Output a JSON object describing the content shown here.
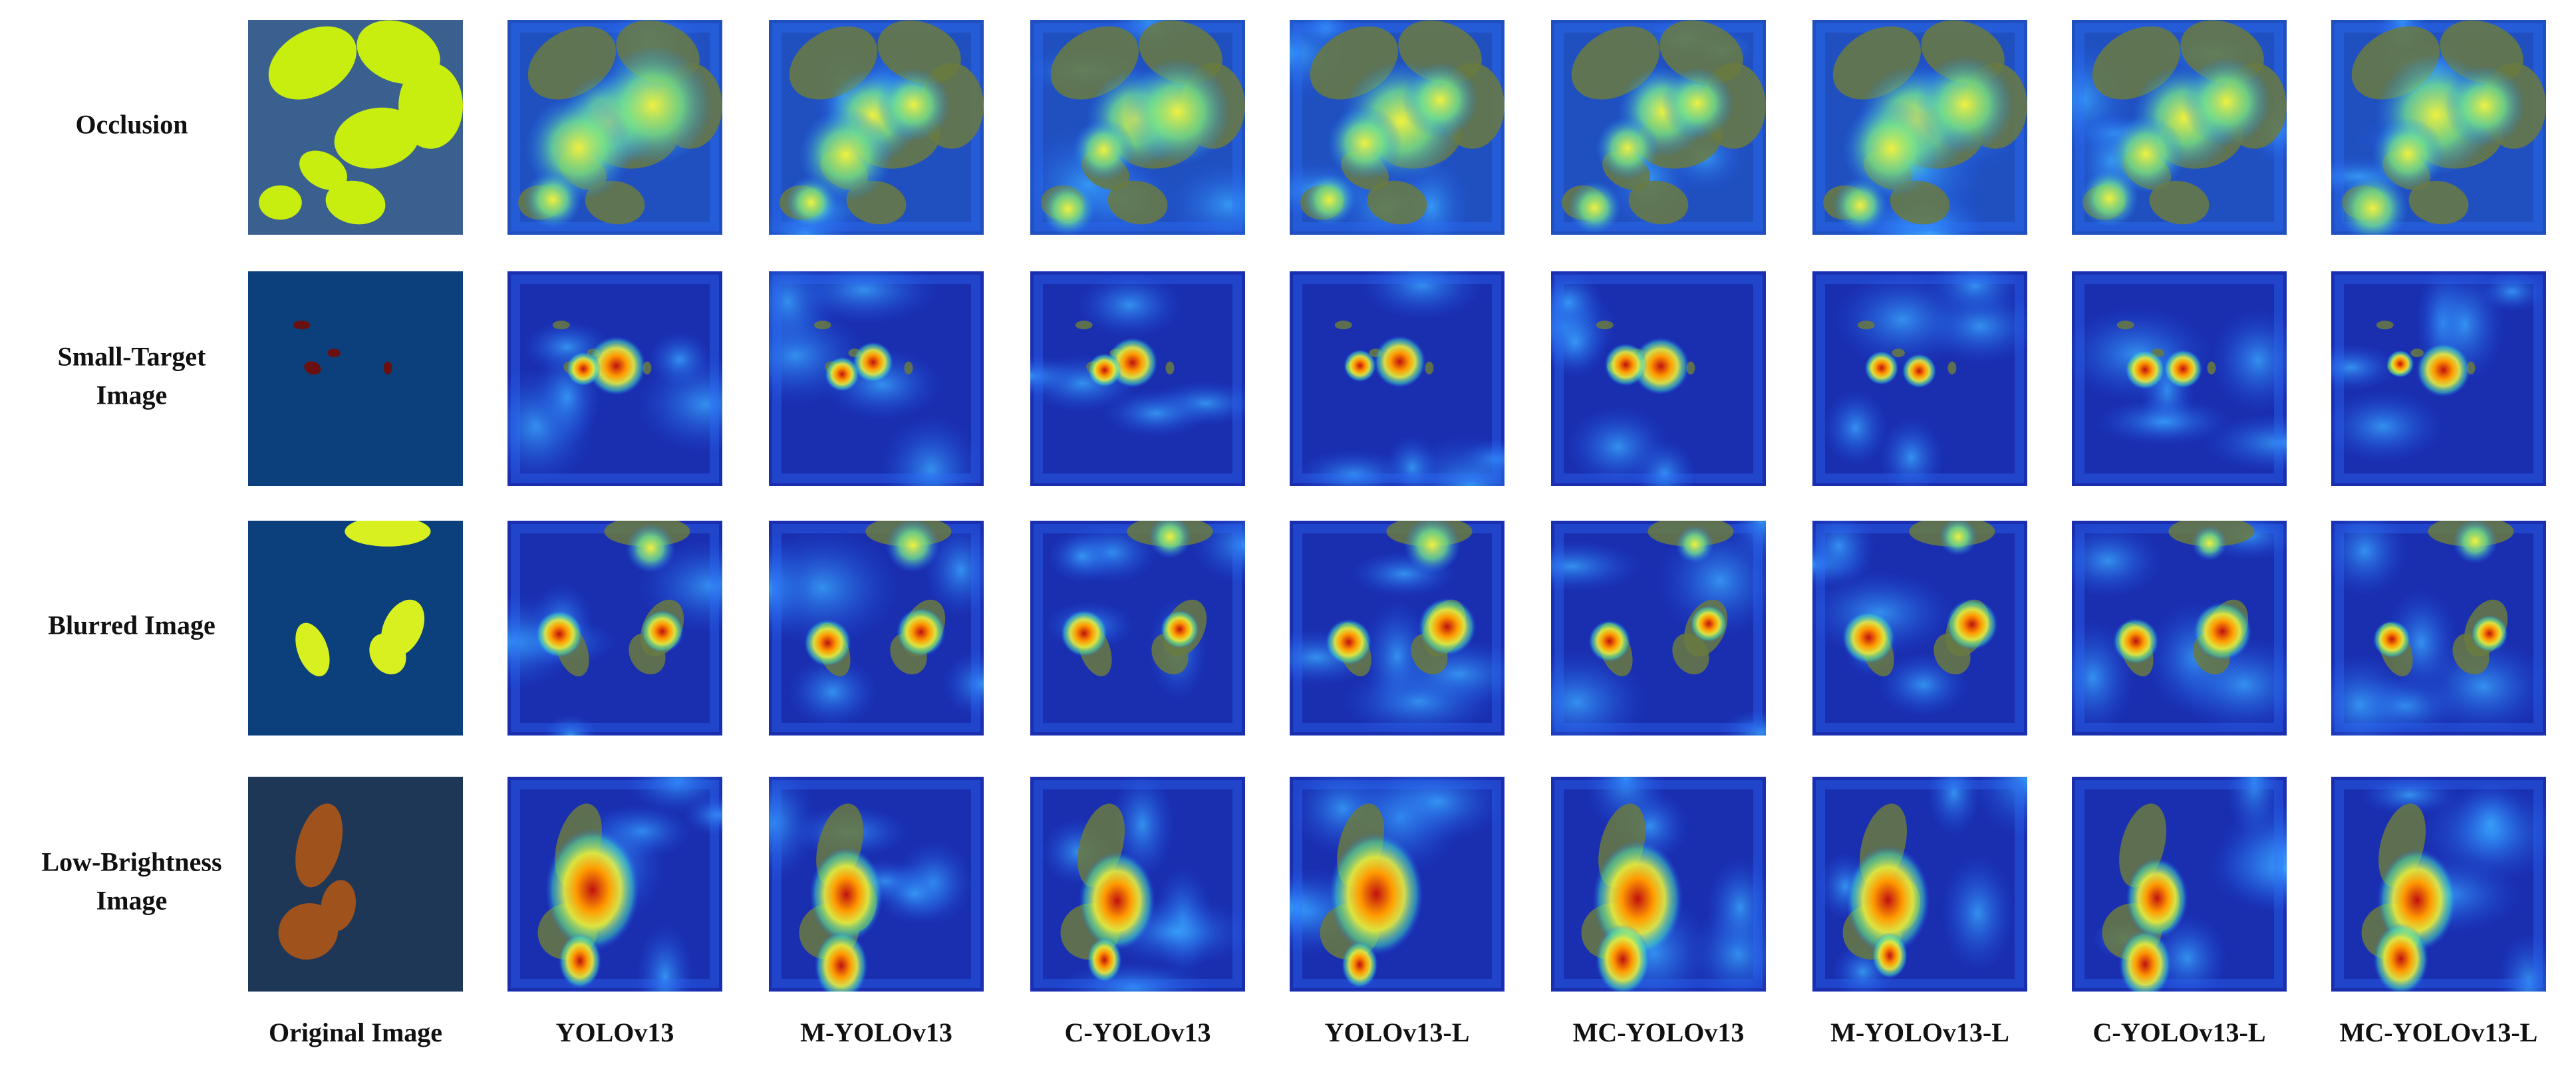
{
  "rows": [
    {
      "label_lines": [
        "Occlusion"
      ]
    },
    {
      "label_lines": [
        "Small-Target",
        "Image"
      ]
    },
    {
      "label_lines": [
        "Blurred Image"
      ]
    },
    {
      "label_lines": [
        "Low-Brightness",
        "Image"
      ]
    }
  ],
  "column_labels": [
    "Original Image",
    "YOLOv13",
    "M-YOLOv13",
    "C-YOLOv13",
    "YOLOv13-L",
    "MC-YOLOv13",
    "M-YOLOv13-L",
    "C-YOLOv13-L",
    "MC-YOLOv13-L"
  ]
}
